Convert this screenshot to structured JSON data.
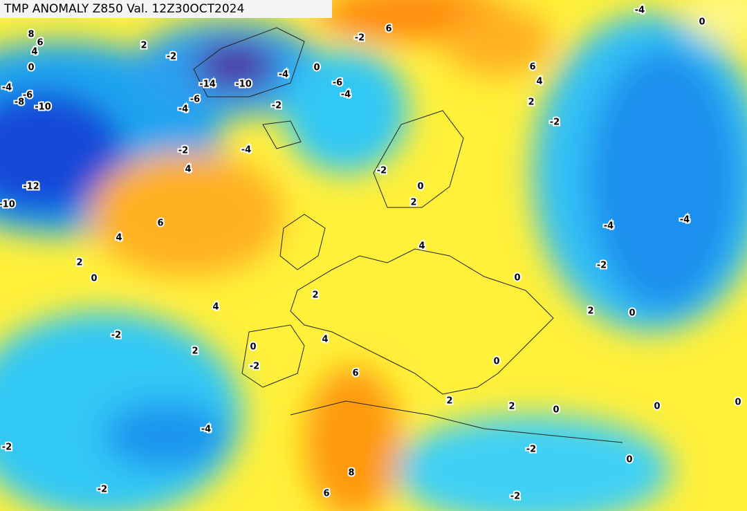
{
  "title": "TMP ANOMALY Z850 Val. 12Z30OCT2024",
  "contour_labels": [
    8,
    6,
    4,
    0,
    -4,
    -6,
    -8,
    -10,
    -12,
    -10,
    2,
    -2,
    -14,
    -10,
    -6,
    -4,
    -4,
    0,
    -2,
    -6,
    -4,
    -2,
    6,
    6,
    4,
    2,
    -2,
    -4,
    0,
    -2,
    -4,
    4,
    -2,
    0,
    2,
    6,
    4,
    4,
    2,
    0,
    -4,
    -4,
    -2,
    0,
    2,
    4,
    2,
    0,
    -2,
    4,
    2,
    0,
    -2,
    0,
    6,
    2,
    2,
    0,
    0,
    0,
    -4,
    -2,
    -2,
    0,
    8,
    -2,
    6,
    -2
  ]
}
